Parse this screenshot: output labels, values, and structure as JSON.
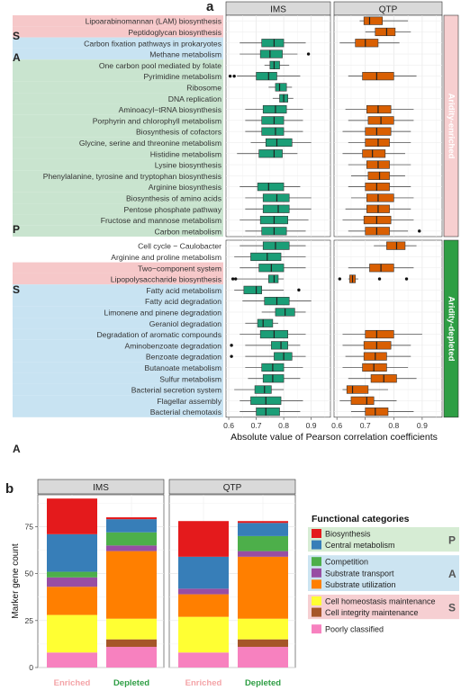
{
  "panel_a": {
    "label": "a",
    "facets": [
      "IMS",
      "QTP"
    ],
    "strips": [
      "Aridity-enriched",
      "Aridity-depleted"
    ],
    "xlabel": "Absolute value of Pearson correlation coefficients",
    "ticks": [
      "0.6",
      "0.7",
      "0.8",
      "0.9"
    ],
    "colors": {
      "ims": "#1b9e77",
      "qtp": "#d95f02",
      "enriched_strip": "#f7cfd0",
      "depleted_strip": "#2e9e44",
      "cat_P": "#c9e4cf",
      "cat_A": "#c8e3f2",
      "cat_S": "#f6c8c9"
    },
    "group_letters": {
      "enriched": [
        "S",
        "A",
        "P"
      ],
      "depleted": [
        "S",
        "A"
      ]
    },
    "enriched": [
      {
        "name": "Lipoarabinomannan (LAM) biosynthesis",
        "cat": "S",
        "ims": null,
        "qtp": [
          0.68,
          0.695,
          0.715,
          0.76,
          0.85
        ]
      },
      {
        "name": "Peptidoglycan biosynthesis",
        "cat": "S",
        "ims": null,
        "qtp": [
          0.7,
          0.735,
          0.775,
          0.805,
          0.86
        ]
      },
      {
        "name": "Carbon fixation pathways in prokaryotes",
        "cat": "A",
        "ims": [
          0.64,
          0.72,
          0.765,
          0.8,
          0.88
        ],
        "qtp": [
          0.61,
          0.665,
          0.7,
          0.745,
          0.82
        ]
      },
      {
        "name": "Methane metabolism",
        "cat": "A",
        "ims": [
          0.64,
          0.715,
          0.75,
          0.795,
          0.85
        ],
        "qtp": null
      },
      {
        "name": "One carbon pool mediated by folate",
        "cat": "P",
        "ims": [
          0.73,
          0.75,
          0.765,
          0.785,
          0.82
        ],
        "qtp": null
      },
      {
        "name": "Pyrimidine metabolism",
        "cat": "P",
        "ims": [
          0.63,
          0.7,
          0.745,
          0.775,
          0.86
        ],
        "qtp": [
          0.64,
          0.69,
          0.74,
          0.8,
          0.88
        ]
      },
      {
        "name": "Ribosome",
        "cat": "P",
        "ims": [
          0.745,
          0.77,
          0.785,
          0.81,
          0.83
        ],
        "qtp": null
      },
      {
        "name": "DNA replication",
        "cat": "P",
        "ims": [
          0.76,
          0.785,
          0.8,
          0.815,
          0.835
        ],
        "qtp": null
      },
      {
        "name": "Aminoacyl−tRNA biosynthesis",
        "cat": "P",
        "ims": [
          0.66,
          0.725,
          0.77,
          0.81,
          0.87
        ],
        "qtp": [
          0.63,
          0.705,
          0.745,
          0.79,
          0.87
        ]
      },
      {
        "name": "Porphyrin and chlorophyll metabolism",
        "cat": "P",
        "ims": [
          0.66,
          0.72,
          0.765,
          0.8,
          0.87
        ],
        "qtp": [
          0.64,
          0.71,
          0.755,
          0.8,
          0.87
        ]
      },
      {
        "name": "Biosynthesis of cofactors",
        "cat": "P",
        "ims": [
          0.66,
          0.72,
          0.77,
          0.8,
          0.87
        ],
        "qtp": [
          0.62,
          0.7,
          0.74,
          0.79,
          0.86
        ]
      },
      {
        "name": "Glycine, serine and threonine metabolism",
        "cat": "P",
        "ims": [
          0.68,
          0.735,
          0.775,
          0.83,
          0.9
        ],
        "qtp": [
          0.64,
          0.7,
          0.745,
          0.785,
          0.86
        ]
      },
      {
        "name": "Histidine metabolism",
        "cat": "P",
        "ims": [
          0.63,
          0.71,
          0.765,
          0.795,
          0.85
        ],
        "qtp": [
          0.62,
          0.69,
          0.725,
          0.77,
          0.84
        ]
      },
      {
        "name": "Lysine biosynthesis",
        "cat": "P",
        "ims": null,
        "qtp": [
          0.64,
          0.705,
          0.745,
          0.785,
          0.86
        ]
      },
      {
        "name": "Phenylalanine, tyrosine and tryptophan biosynthesis",
        "cat": "P",
        "ims": null,
        "qtp": [
          0.65,
          0.71,
          0.75,
          0.785,
          0.84
        ]
      },
      {
        "name": "Arginine biosynthesis",
        "cat": "P",
        "ims": [
          0.64,
          0.705,
          0.745,
          0.8,
          0.86
        ],
        "qtp": [
          0.64,
          0.7,
          0.74,
          0.785,
          0.86
        ]
      },
      {
        "name": "Biosynthesis of amino acids",
        "cat": "P",
        "ims": [
          0.66,
          0.725,
          0.775,
          0.82,
          0.9
        ],
        "qtp": [
          0.65,
          0.705,
          0.745,
          0.8,
          0.87
        ]
      },
      {
        "name": "Pentose phosphate pathway",
        "cat": "P",
        "ims": [
          0.66,
          0.725,
          0.78,
          0.82,
          0.9
        ],
        "qtp": [
          0.63,
          0.705,
          0.745,
          0.785,
          0.86
        ]
      },
      {
        "name": "Fructose and mannose metabolism",
        "cat": "P",
        "ims": [
          0.64,
          0.715,
          0.765,
          0.815,
          0.89
        ],
        "qtp": [
          0.62,
          0.695,
          0.74,
          0.79,
          0.87
        ]
      },
      {
        "name": "Carbon metabolism",
        "cat": "P",
        "ims": [
          0.66,
          0.72,
          0.765,
          0.81,
          0.88
        ],
        "qtp": [
          0.64,
          0.7,
          0.74,
          0.785,
          0.85
        ]
      }
    ],
    "depleted": [
      {
        "name": "Cell cycle − Caulobacter",
        "cat": "none",
        "ims": [
          0.64,
          0.725,
          0.77,
          0.82,
          0.88
        ],
        "qtp": [
          0.73,
          0.775,
          0.81,
          0.84,
          0.88
        ]
      },
      {
        "name": "Arginine and proline metabolism",
        "cat": "none",
        "ims": [
          0.62,
          0.68,
          0.74,
          0.79,
          0.88
        ],
        "qtp": null
      },
      {
        "name": "Two−component system",
        "cat": "S",
        "ims": [
          0.64,
          0.71,
          0.755,
          0.8,
          0.88
        ],
        "qtp": [
          0.64,
          0.715,
          0.755,
          0.8,
          0.87
        ]
      },
      {
        "name": "Lipopolysaccharide biosynthesis",
        "cat": "S",
        "ims": [
          0.62,
          0.745,
          0.765,
          0.78,
          0.8
        ],
        "qtp": [
          0.64,
          0.645,
          0.655,
          0.665,
          0.675
        ]
      },
      {
        "name": "Fatty acid metabolism",
        "cat": "A",
        "ims": [
          0.62,
          0.655,
          0.7,
          0.72,
          0.8
        ],
        "qtp": null
      },
      {
        "name": "Fatty acid degradation",
        "cat": "A",
        "ims": [
          0.65,
          0.73,
          0.775,
          0.82,
          0.9
        ],
        "qtp": null
      },
      {
        "name": "Limonene and pinene degradation",
        "cat": "A",
        "ims": [
          0.72,
          0.77,
          0.805,
          0.84,
          0.88
        ],
        "qtp": null
      },
      {
        "name": "Geraniol degradation",
        "cat": "A",
        "ims": [
          0.66,
          0.705,
          0.725,
          0.76,
          0.78
        ],
        "qtp": null
      },
      {
        "name": "Degradation of aromatic compounds",
        "cat": "A",
        "ims": [
          0.64,
          0.715,
          0.765,
          0.815,
          0.88
        ],
        "qtp": [
          0.62,
          0.7,
          0.74,
          0.8,
          0.9
        ]
      },
      {
        "name": "Aminobenzoate degradation",
        "cat": "A",
        "ims": [
          0.66,
          0.755,
          0.79,
          0.815,
          0.86
        ],
        "qtp": [
          0.62,
          0.695,
          0.74,
          0.79,
          0.86
        ]
      },
      {
        "name": "Benzoate degradation",
        "cat": "A",
        "ims": [
          0.66,
          0.765,
          0.8,
          0.83,
          0.88
        ],
        "qtp": [
          0.63,
          0.695,
          0.735,
          0.775,
          0.86
        ]
      },
      {
        "name": "Butanoate metabolism",
        "cat": "A",
        "ims": [
          0.66,
          0.72,
          0.76,
          0.8,
          0.87
        ],
        "qtp": [
          0.62,
          0.69,
          0.73,
          0.775,
          0.85
        ]
      },
      {
        "name": "Sulfur metabolism",
        "cat": "A",
        "ims": [
          0.67,
          0.725,
          0.76,
          0.8,
          0.86
        ],
        "qtp": [
          0.64,
          0.72,
          0.765,
          0.81,
          0.88
        ]
      },
      {
        "name": "Bacterial secretion system",
        "cat": "A",
        "ims": [
          0.62,
          0.695,
          0.73,
          0.755,
          0.8
        ],
        "qtp": [
          0.62,
          0.635,
          0.655,
          0.71,
          0.78
        ]
      },
      {
        "name": "Flagellar assembly",
        "cat": "A",
        "ims": [
          0.64,
          0.68,
          0.735,
          0.79,
          0.87
        ],
        "qtp": [
          0.61,
          0.65,
          0.705,
          0.73,
          0.81
        ]
      },
      {
        "name": "Bacterial chemotaxis",
        "cat": "A",
        "ims": [
          0.64,
          0.7,
          0.735,
          0.785,
          0.86
        ],
        "qtp": [
          0.65,
          0.7,
          0.735,
          0.78,
          0.87
        ]
      }
    ],
    "outliers": [
      {
        "row": "Methane metabolism",
        "group": "enriched",
        "facet": "ims",
        "values": [
          0.89
        ]
      },
      {
        "row": "Pyrimidine metabolism",
        "group": "enriched",
        "facet": "ims",
        "values": [
          0.605,
          0.62
        ]
      },
      {
        "row": "Carbon metabolism",
        "group": "enriched",
        "facet": "qtp",
        "values": [
          0.89
        ]
      },
      {
        "row": "Lipopolysaccharide biosynthesis",
        "group": "depleted",
        "facet": "ims",
        "values": [
          0.615,
          0.625
        ]
      },
      {
        "row": "Fatty acid metabolism",
        "group": "depleted",
        "facet": "ims",
        "values": [
          0.855
        ]
      },
      {
        "row": "Aminobenzoate degradation",
        "group": "depleted",
        "facet": "ims",
        "values": [
          0.61
        ]
      },
      {
        "row": "Benzoate degradation",
        "group": "depleted",
        "facet": "ims",
        "values": [
          0.61
        ]
      },
      {
        "row": "Lipopolysaccharide biosynthesis",
        "group": "depleted",
        "facet": "qtp",
        "values": [
          0.61,
          0.75,
          0.845
        ]
      }
    ]
  },
  "panel_b": {
    "label": "b",
    "facets": [
      "IMS",
      "QTP"
    ],
    "ylabel": "Marker gene count",
    "yticks": [
      0,
      25,
      50,
      75
    ],
    "ymax": 92,
    "x_categories": [
      {
        "label": "Enriched",
        "color": "#f4a4a8"
      },
      {
        "label": "Depleted",
        "color": "#2e9e44"
      }
    ],
    "stack_order": [
      "Poorly classified",
      "Cell integrity maintenance",
      "Cell homeostasis maintenance",
      "Substrate utilization",
      "Substrate transport",
      "Competition",
      "Central metabolism",
      "Biosynthesis"
    ],
    "series_colors": {
      "Biosynthesis": "#e41a1c",
      "Central metabolism": "#377eb8",
      "Competition": "#4daf4a",
      "Substrate transport": "#984ea3",
      "Substrate utilization": "#ff7f00",
      "Cell homeostasis maintenance": "#ffff33",
      "Cell integrity maintenance": "#a65628",
      "Poorly classified": "#f781bf"
    },
    "bars": {
      "IMS": {
        "Enriched": {
          "Poorly classified": 8,
          "Cell integrity maintenance": 0,
          "Cell homeostasis maintenance": 20,
          "Substrate utilization": 15,
          "Substrate transport": 5,
          "Competition": 3,
          "Central metabolism": 20,
          "Biosynthesis": 19
        },
        "Depleted": {
          "Poorly classified": 11,
          "Cell integrity maintenance": 4,
          "Cell homeostasis maintenance": 11,
          "Substrate utilization": 36,
          "Substrate transport": 3,
          "Competition": 7,
          "Central metabolism": 7,
          "Biosynthesis": 1
        }
      },
      "QTP": {
        "Enriched": {
          "Poorly classified": 8,
          "Cell integrity maintenance": 0,
          "Cell homeostasis maintenance": 19,
          "Substrate utilization": 12,
          "Substrate transport": 3,
          "Competition": 0,
          "Central metabolism": 17,
          "Biosynthesis": 19
        },
        "Depleted": {
          "Poorly classified": 11,
          "Cell integrity maintenance": 4,
          "Cell homeostasis maintenance": 11,
          "Substrate utilization": 33,
          "Substrate transport": 3,
          "Competition": 8,
          "Central metabolism": 7,
          "Biosynthesis": 1
        }
      }
    },
    "legend": {
      "title": "Functional categories",
      "groups": [
        {
          "letter": "P",
          "bg": "#d6ecd4",
          "items": [
            "Biosynthesis",
            "Central metabolism"
          ]
        },
        {
          "letter": "A",
          "bg": "#cce4f1",
          "items": [
            "Competition",
            "Substrate transport",
            "Substrate utilization"
          ]
        },
        {
          "letter": "S",
          "bg": "#f6cfd2",
          "items": [
            "Cell homeostasis maintenance",
            "Cell integrity maintenance"
          ]
        },
        {
          "letter": "",
          "bg": "#ffffff",
          "items": [
            "Poorly classified"
          ]
        }
      ]
    }
  }
}
